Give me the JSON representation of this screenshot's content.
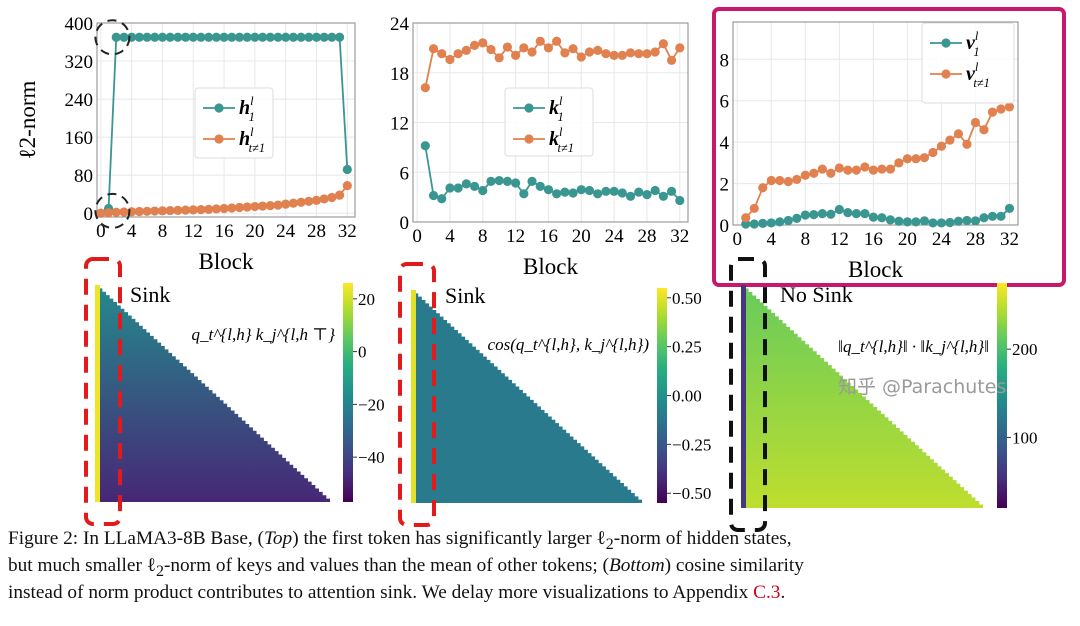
{
  "colors": {
    "teal": "#3a9690",
    "orange": "#e0814f",
    "highlight_box": "#c8186e",
    "sink_box": "#e31a1c",
    "no_sink_box": "#111111",
    "link": "#d0021b"
  },
  "chart_data": [
    {
      "type": "line",
      "ylabel": "ℓ2-norm",
      "xlabel": "Block",
      "xticks": [
        0,
        4,
        8,
        12,
        16,
        20,
        24,
        28,
        32
      ],
      "yticks": [
        0,
        80,
        160,
        240,
        320,
        400
      ],
      "xlim": [
        -0.5,
        33
      ],
      "ylim": [
        -8,
        400
      ],
      "grid": true,
      "legend": "center",
      "annotations": [
        "dashed circle at block 1-2 upper",
        "dashed circle at block 1-2 lower"
      ],
      "x": [
        0,
        1,
        2,
        3,
        4,
        5,
        6,
        7,
        8,
        9,
        10,
        11,
        12,
        13,
        14,
        15,
        16,
        17,
        18,
        19,
        20,
        21,
        22,
        23,
        24,
        25,
        26,
        27,
        28,
        29,
        30,
        31,
        32
      ],
      "series": [
        {
          "name": {
            "base": "h",
            "sup": "l",
            "sub": "1"
          },
          "color": "teal",
          "values": [
            0,
            10,
            370,
            370,
            370,
            370,
            370,
            370,
            370,
            370,
            370,
            370,
            370,
            370,
            370,
            370,
            370,
            370,
            370,
            370,
            370,
            370,
            370,
            370,
            370,
            370,
            370,
            370,
            370,
            370,
            370,
            370,
            92
          ]
        },
        {
          "name": {
            "base": "h",
            "sup": "l",
            "sub": "t≠1"
          },
          "color": "orange",
          "values": [
            0,
            1,
            2,
            2.5,
            3,
            3.5,
            4,
            4.5,
            5,
            5.5,
            6,
            6.5,
            7,
            7.5,
            8,
            9,
            10,
            11,
            12,
            13,
            14,
            15,
            16,
            17,
            19,
            21,
            23,
            25,
            27,
            30,
            33,
            38,
            58
          ]
        }
      ]
    },
    {
      "type": "line",
      "xlabel": "Block",
      "xticks": [
        0,
        4,
        8,
        12,
        16,
        20,
        24,
        28,
        32
      ],
      "yticks": [
        0,
        6,
        12,
        18,
        24
      ],
      "xlim": [
        -0.5,
        33
      ],
      "ylim": [
        0,
        24
      ],
      "grid": true,
      "legend": "center",
      "x": [
        1,
        2,
        3,
        4,
        5,
        6,
        7,
        8,
        9,
        10,
        11,
        12,
        13,
        14,
        15,
        16,
        17,
        18,
        19,
        20,
        21,
        22,
        23,
        24,
        25,
        26,
        27,
        28,
        29,
        30,
        31,
        32
      ],
      "series": [
        {
          "name": {
            "base": "k",
            "sup": "l",
            "sub": "1"
          },
          "color": "teal",
          "values": [
            9.2,
            3.2,
            2.8,
            4.1,
            4.1,
            4.6,
            4.3,
            3.8,
            4.9,
            5.0,
            4.9,
            4.7,
            3.4,
            4.9,
            4.3,
            3.9,
            3.4,
            3.6,
            3.5,
            3.9,
            3.8,
            3.4,
            3.7,
            3.7,
            3.5,
            3.1,
            3.6,
            3.3,
            3.8,
            3.1,
            3.7,
            2.6
          ]
        },
        {
          "name": {
            "base": "k",
            "sup": "l",
            "sub": "t≠1"
          },
          "color": "orange",
          "values": [
            16.2,
            20.9,
            20.3,
            19.6,
            20.3,
            20.7,
            21.3,
            21.6,
            20.8,
            19.8,
            21.1,
            20.1,
            21.0,
            20.5,
            21.8,
            21.0,
            21.8,
            20.4,
            20.9,
            19.9,
            20.5,
            20.7,
            20.3,
            20.1,
            20.1,
            20.4,
            20.3,
            20.3,
            20.5,
            21.5,
            19.5,
            21.0
          ]
        }
      ]
    },
    {
      "type": "line",
      "xlabel": "Block",
      "xticks": [
        0,
        4,
        8,
        12,
        16,
        20,
        24,
        28,
        32
      ],
      "yticks": [
        0,
        2,
        4,
        6,
        8
      ],
      "xlim": [
        -0.5,
        33
      ],
      "ylim": [
        0,
        9.8
      ],
      "grid": true,
      "legend": "top-right",
      "x": [
        1,
        2,
        3,
        4,
        5,
        6,
        7,
        8,
        9,
        10,
        11,
        12,
        13,
        14,
        15,
        16,
        17,
        18,
        19,
        20,
        21,
        22,
        23,
        24,
        25,
        26,
        27,
        28,
        29,
        30,
        31,
        32
      ],
      "series": [
        {
          "name": {
            "base": "v",
            "sup": "l",
            "sub": "1"
          },
          "color": "teal",
          "values": [
            0.05,
            0.05,
            0.08,
            0.1,
            0.15,
            0.22,
            0.32,
            0.48,
            0.5,
            0.55,
            0.52,
            0.75,
            0.6,
            0.55,
            0.55,
            0.38,
            0.35,
            0.25,
            0.18,
            0.15,
            0.15,
            0.2,
            0.1,
            0.1,
            0.12,
            0.18,
            0.22,
            0.2,
            0.35,
            0.42,
            0.42,
            0.8
          ]
        },
        {
          "name": {
            "base": "v",
            "sup": "l",
            "sub": "t≠1"
          },
          "color": "orange",
          "values": [
            0.35,
            0.8,
            1.8,
            2.15,
            2.15,
            2.1,
            2.2,
            2.4,
            2.5,
            2.7,
            2.5,
            2.75,
            2.65,
            2.65,
            2.8,
            2.65,
            2.7,
            2.7,
            3.0,
            3.2,
            3.2,
            3.25,
            3.5,
            3.8,
            4.1,
            4.4,
            3.9,
            4.95,
            4.6,
            5.45,
            5.6,
            5.7
          ]
        }
      ]
    },
    {
      "type": "heatmap",
      "colormap": "viridis",
      "label": "Sink",
      "formula": "q_t^{l,h} k_j^{l,h ⊤}",
      "colorbar_ticks": [
        20,
        0,
        -20,
        -40
      ],
      "clim": [
        -57,
        26
      ],
      "first_column_value": 24,
      "body_value_top": -18,
      "body_value_bottom": -48
    },
    {
      "type": "heatmap",
      "colormap": "viridis",
      "label": "Sink",
      "formula": "cos(q_t^{l,h}, k_j^{l,h})",
      "colorbar_ticks": [
        "0.50",
        "0.25",
        "0.00",
        "−0.25",
        "−0.50"
      ],
      "clim": [
        -0.55,
        0.55
      ],
      "first_column_value": 0.5,
      "body_value_top": -0.1,
      "body_value_bottom": -0.1
    },
    {
      "type": "heatmap",
      "colormap": "viridis",
      "label": "No Sink",
      "formula": "‖q_t^{l,h}‖ · ‖k_j^{l,h}‖",
      "colorbar_ticks": [
        200,
        100
      ],
      "clim": [
        20,
        275
      ],
      "first_column_value": 60,
      "body_value_top": 215,
      "body_value_bottom": 250
    }
  ],
  "caption": {
    "line1_a": "Figure 2: In LLaMA3-8B Base, (",
    "line1_em": "Top",
    "line1_b": ") the first token has significantly larger ℓ",
    "line1_sub": "2",
    "line1_c": "-norm of hidden states,",
    "line2_a": "but much smaller ℓ",
    "line2_sub": "2",
    "line2_b": "-norm of keys and values than the mean of other tokens; (",
    "line2_em": "Bottom",
    "line2_c": ") cosine similarity",
    "line3_a": "instead of norm product contributes to attention sink. We delay more visualizations to Appendix ",
    "line3_link": "C.3",
    "line3_b": "."
  },
  "watermark": "知乎 @Parachutes"
}
